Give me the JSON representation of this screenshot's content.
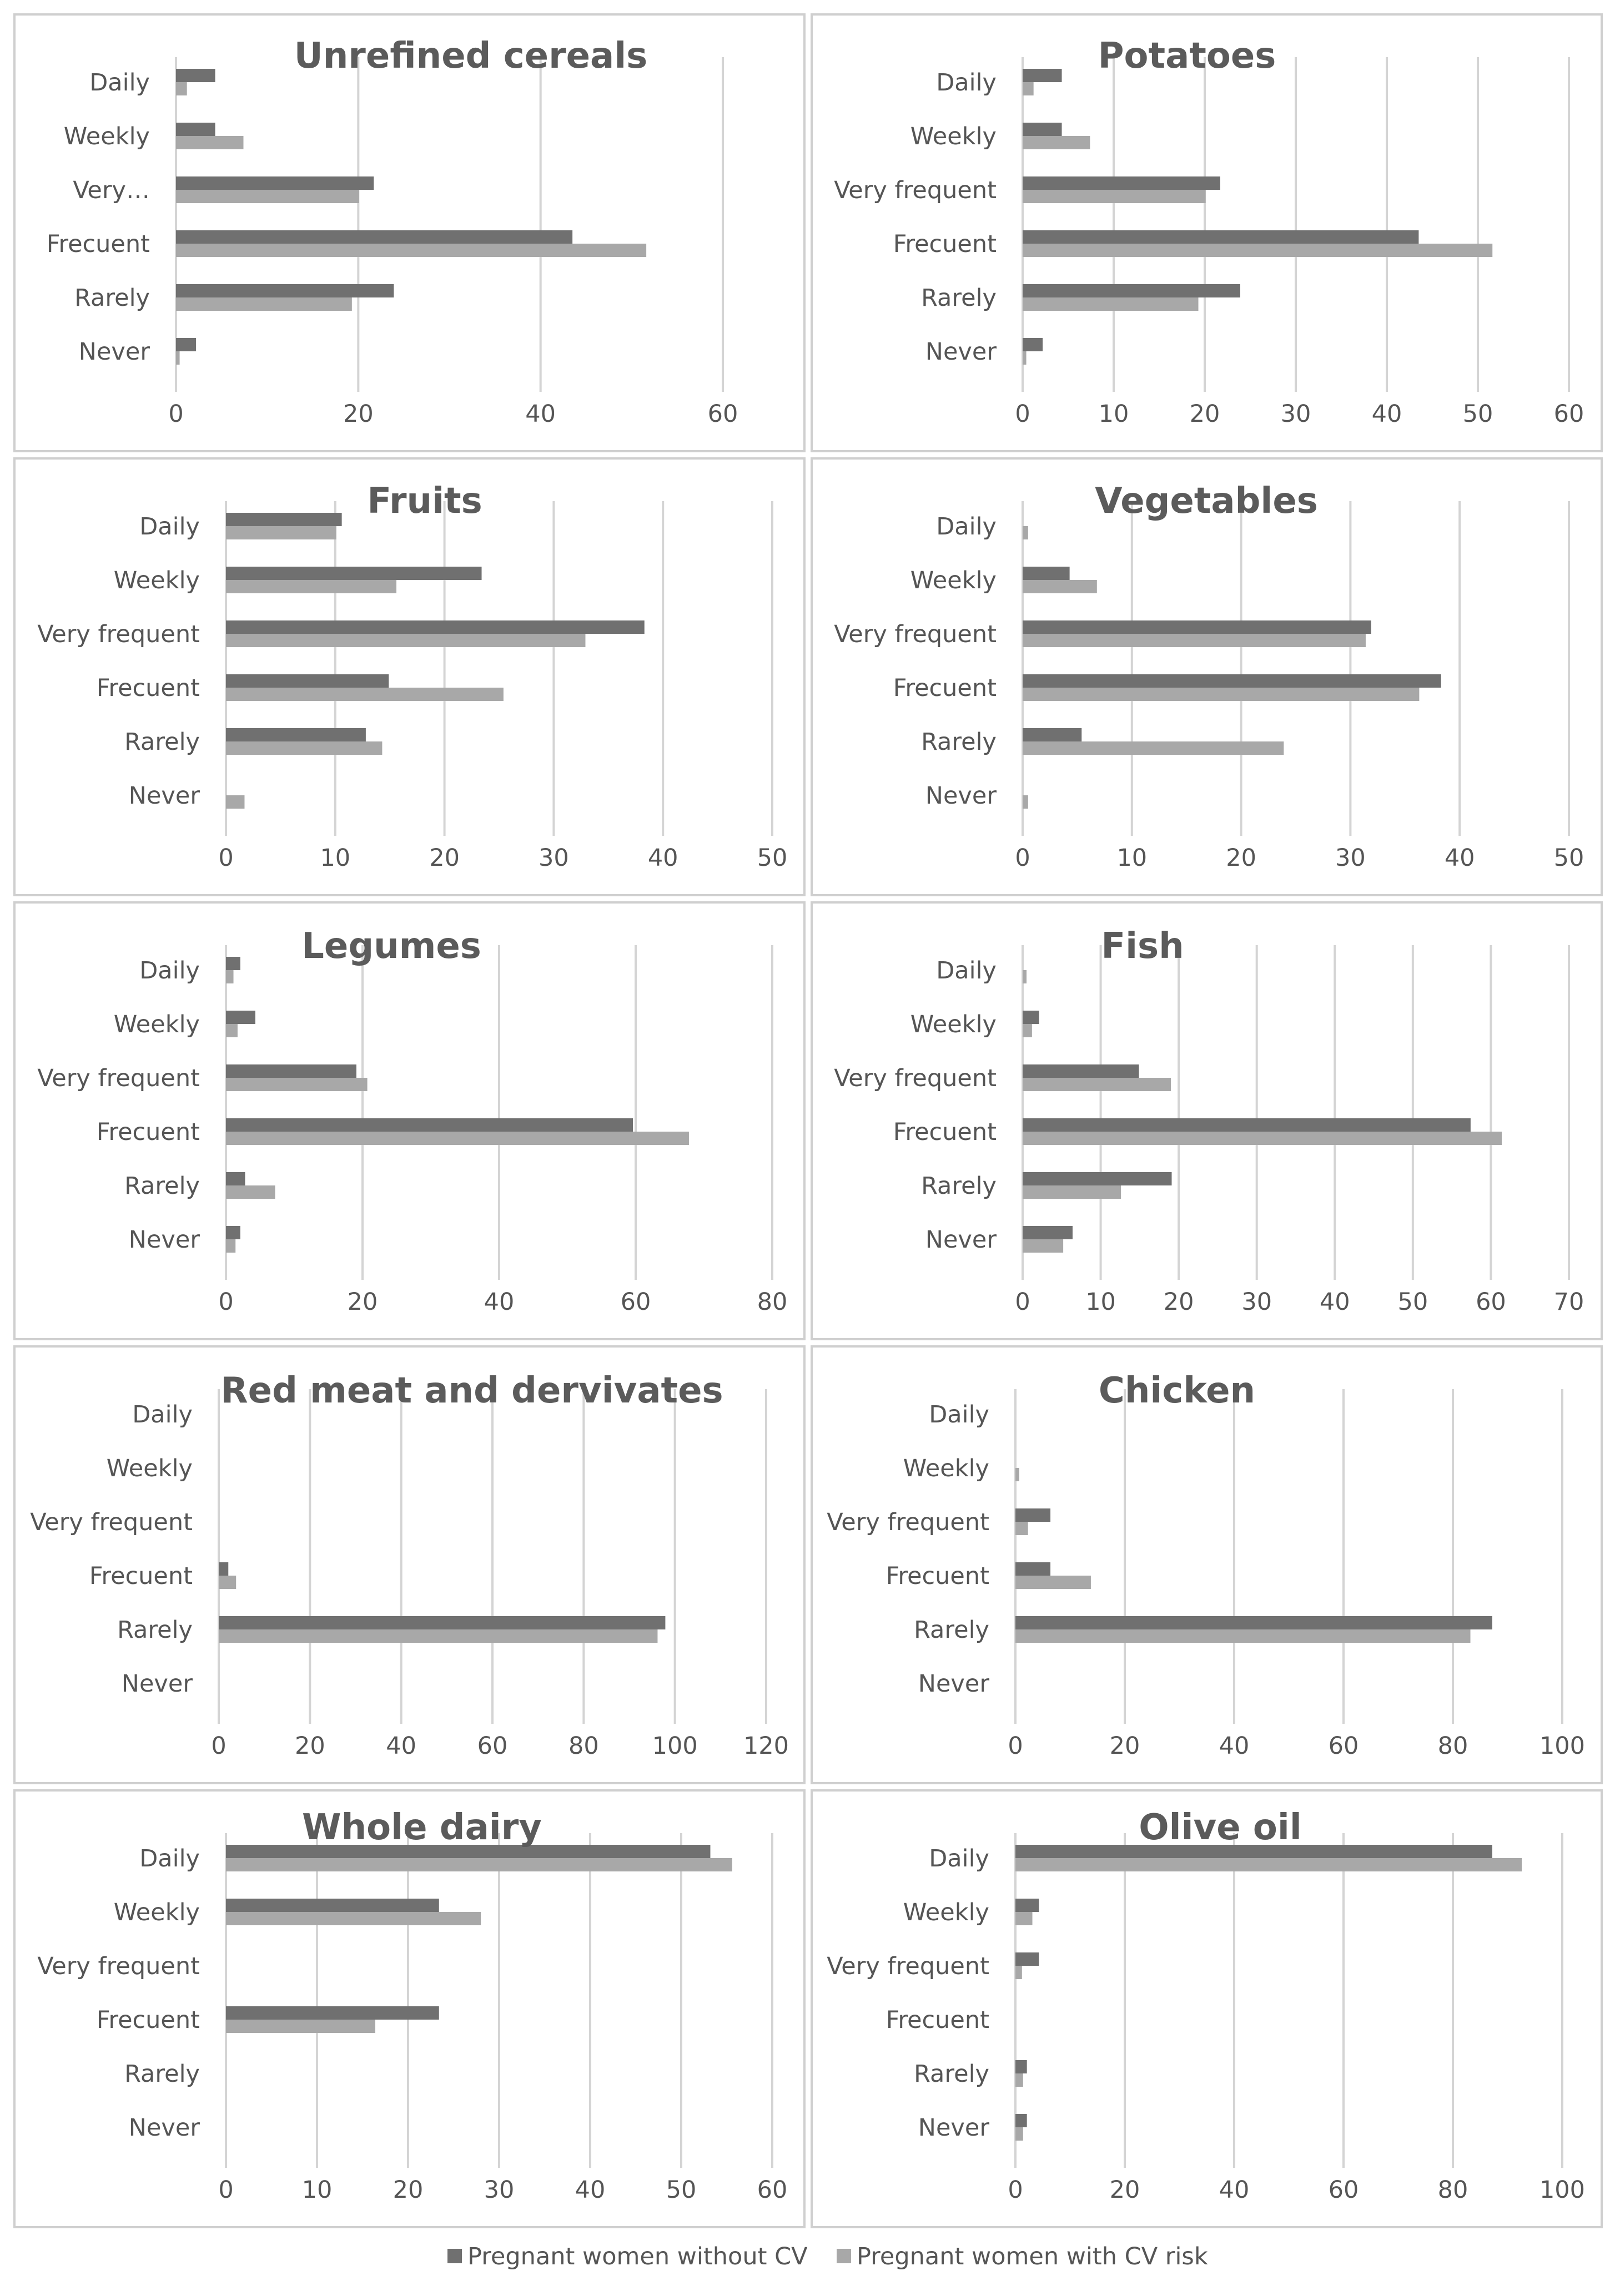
{
  "colors": {
    "without_cv": "#707070",
    "with_cv_risk": "#a8a8a8"
  },
  "legend": {
    "items": [
      {
        "name": "Pregnant women without CV",
        "color": "#707070"
      },
      {
        "name": "Pregnant women with CV risk",
        "color": "#a8a8a8"
      }
    ]
  },
  "chart_data": [
    {
      "type": "bar",
      "orientation": "horizontal",
      "title": "Unrefined cereals",
      "categories": [
        "Daily",
        "Weekly",
        "Very…",
        "Frecuent",
        "Rarely",
        "Never"
      ],
      "xlim": [
        0,
        60
      ],
      "xticks": [
        0,
        20,
        40,
        60
      ],
      "grid": true,
      "series": [
        {
          "name": "Pregnant women without CV",
          "values": [
            4.3,
            4.3,
            21.7,
            43.5,
            23.9,
            2.2
          ]
        },
        {
          "name": "Pregnant women with CV risk",
          "values": [
            1.2,
            7.4,
            20.1,
            51.6,
            19.3,
            0.4
          ]
        }
      ]
    },
    {
      "type": "bar",
      "orientation": "horizontal",
      "title": "Potatoes",
      "categories": [
        "Daily",
        "Weekly",
        "Very frequent",
        "Frecuent",
        "Rarely",
        "Never"
      ],
      "xlim": [
        0,
        60
      ],
      "xticks": [
        0,
        10,
        20,
        30,
        40,
        50,
        60
      ],
      "grid": true,
      "series": [
        {
          "name": "Pregnant women without CV",
          "values": [
            4.3,
            4.3,
            21.7,
            43.5,
            23.9,
            2.2
          ]
        },
        {
          "name": "Pregnant women with CV risk",
          "values": [
            1.2,
            7.4,
            20.1,
            51.6,
            19.3,
            0.4
          ]
        }
      ]
    },
    {
      "type": "bar",
      "orientation": "horizontal",
      "title": "Fruits",
      "categories": [
        "Daily",
        "Weekly",
        "Very frequent",
        "Frecuent",
        "Rarely",
        "Never"
      ],
      "xlim": [
        0,
        50
      ],
      "xticks": [
        0,
        10,
        20,
        30,
        40,
        50
      ],
      "grid": true,
      "series": [
        {
          "name": "Pregnant women without CV",
          "values": [
            10.6,
            23.4,
            38.3,
            14.9,
            12.8,
            0
          ]
        },
        {
          "name": "Pregnant women with CV risk",
          "values": [
            10.1,
            15.6,
            32.9,
            25.4,
            14.3,
            1.7
          ]
        }
      ]
    },
    {
      "type": "bar",
      "orientation": "horizontal",
      "title": "Vegetables",
      "categories": [
        "Daily",
        "Weekly",
        "Very frequent",
        "Frecuent",
        "Rarely",
        "Never"
      ],
      "xlim": [
        0,
        50
      ],
      "xticks": [
        0,
        10,
        20,
        30,
        40,
        50
      ],
      "grid": true,
      "series": [
        {
          "name": "Pregnant women without CV",
          "values": [
            0,
            4.3,
            31.9,
            38.3,
            5.4,
            0
          ]
        },
        {
          "name": "Pregnant women with CV risk",
          "values": [
            0.5,
            6.8,
            31.4,
            36.3,
            23.9,
            0.5
          ]
        }
      ]
    },
    {
      "type": "bar",
      "orientation": "horizontal",
      "title": "Legumes",
      "categories": [
        "Daily",
        "Weekly",
        "Very frequent",
        "Frecuent",
        "Rarely",
        "Never"
      ],
      "xlim": [
        0,
        80
      ],
      "xticks": [
        0,
        20,
        40,
        60,
        80
      ],
      "grid": true,
      "series": [
        {
          "name": "Pregnant women without CV",
          "values": [
            2.1,
            4.3,
            19.1,
            59.6,
            2.8,
            2.1
          ]
        },
        {
          "name": "Pregnant women with CV risk",
          "values": [
            1.1,
            1.7,
            20.7,
            67.8,
            7.2,
            1.4
          ]
        }
      ]
    },
    {
      "type": "bar",
      "orientation": "horizontal",
      "title": "Fish",
      "categories": [
        "Daily",
        "Weekly",
        "Very frequent",
        "Frecuent",
        "Rarely",
        "Never"
      ],
      "xlim": [
        0,
        70
      ],
      "xticks": [
        0,
        10,
        20,
        30,
        40,
        50,
        60,
        70
      ],
      "grid": true,
      "series": [
        {
          "name": "Pregnant women without CV",
          "values": [
            0,
            2.1,
            14.9,
            57.4,
            19.1,
            6.4
          ]
        },
        {
          "name": "Pregnant women with CV risk",
          "values": [
            0.5,
            1.2,
            19.0,
            61.4,
            12.6,
            5.2
          ]
        }
      ]
    },
    {
      "type": "bar",
      "orientation": "horizontal",
      "title": "Red meat and dervivates",
      "categories": [
        "Daily",
        "Weekly",
        "Very frequent",
        "Frecuent",
        "Rarely",
        "Never"
      ],
      "xlim": [
        0,
        120
      ],
      "xticks": [
        0,
        20,
        40,
        60,
        80,
        100,
        120
      ],
      "grid": true,
      "series": [
        {
          "name": "Pregnant women without CV",
          "values": [
            0,
            0,
            0,
            2.1,
            97.9,
            0
          ]
        },
        {
          "name": "Pregnant women with CV risk",
          "values": [
            0,
            0,
            0,
            3.8,
            96.2,
            0
          ]
        }
      ]
    },
    {
      "type": "bar",
      "orientation": "horizontal",
      "title": "Chicken",
      "categories": [
        "Daily",
        "Weekly",
        "Very frequent",
        "Frecuent",
        "Rarely",
        "Never"
      ],
      "xlim": [
        0,
        100
      ],
      "xticks": [
        0,
        20,
        40,
        60,
        80,
        100
      ],
      "grid": true,
      "series": [
        {
          "name": "Pregnant women without CV",
          "values": [
            0,
            0,
            6.4,
            6.4,
            87.2,
            0
          ]
        },
        {
          "name": "Pregnant women with CV risk",
          "values": [
            0,
            0.7,
            2.3,
            13.8,
            83.2,
            0
          ]
        }
      ]
    },
    {
      "type": "bar",
      "orientation": "horizontal",
      "title": "Whole dairy",
      "categories": [
        "Daily",
        "Weekly",
        "Very frequent",
        "Frecuent",
        "Rarely",
        "Never"
      ],
      "xlim": [
        0,
        60
      ],
      "xticks": [
        0,
        10,
        20,
        30,
        40,
        50,
        60
      ],
      "grid": true,
      "series": [
        {
          "name": "Pregnant women without CV",
          "values": [
            53.2,
            23.4,
            0,
            23.4,
            0,
            0
          ]
        },
        {
          "name": "Pregnant women with CV risk",
          "values": [
            55.6,
            28.0,
            0,
            16.4,
            0,
            0
          ]
        }
      ]
    },
    {
      "type": "bar",
      "orientation": "horizontal",
      "title": "Olive oil",
      "categories": [
        "Daily",
        "Weekly",
        "Very frequent",
        "Frecuent",
        "Rarely",
        "Never"
      ],
      "xlim": [
        0,
        100
      ],
      "xticks": [
        0,
        20,
        40,
        60,
        80,
        100
      ],
      "grid": true,
      "series": [
        {
          "name": "Pregnant women without CV",
          "values": [
            87.2,
            4.3,
            4.3,
            0,
            2.1,
            2.1
          ]
        },
        {
          "name": "Pregnant women with CV risk",
          "values": [
            92.6,
            3.1,
            1.2,
            0,
            1.4,
            1.4
          ]
        }
      ]
    }
  ]
}
